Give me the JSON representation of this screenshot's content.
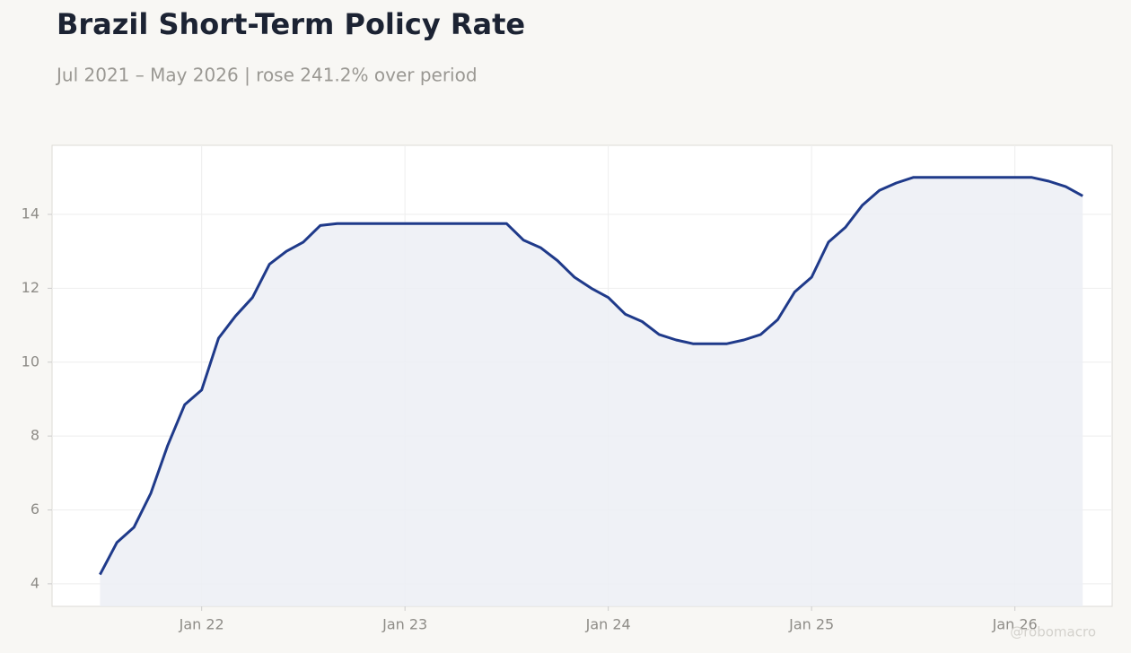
{
  "chart_data": {
    "type": "area-line",
    "title": "Brazil Short-Term Policy Rate",
    "subtitle": "Jul 2021 – May 2026 | rose 241.2% over period",
    "watermark": "@robomacro",
    "color": "#1f3a8a",
    "fill_color": "#eceef5",
    "grid": true,
    "x": [
      "2021-07",
      "2021-08",
      "2021-09",
      "2021-10",
      "2021-11",
      "2021-12",
      "2022-01",
      "2022-02",
      "2022-03",
      "2022-04",
      "2022-05",
      "2022-06",
      "2022-07",
      "2022-08",
      "2022-09",
      "2022-10",
      "2022-11",
      "2022-12",
      "2023-01",
      "2023-02",
      "2023-03",
      "2023-04",
      "2023-05",
      "2023-06",
      "2023-07",
      "2023-08",
      "2023-09",
      "2023-10",
      "2023-11",
      "2023-12",
      "2024-01",
      "2024-02",
      "2024-03",
      "2024-04",
      "2024-05",
      "2024-06",
      "2024-07",
      "2024-08",
      "2024-09",
      "2024-10",
      "2024-11",
      "2024-12",
      "2025-01",
      "2025-02",
      "2025-03",
      "2025-04",
      "2025-05",
      "2025-06",
      "2025-07",
      "2025-08",
      "2025-09",
      "2025-10",
      "2025-11",
      "2025-12",
      "2026-01",
      "2026-02",
      "2026-03",
      "2026-04",
      "2026-05"
    ],
    "values": [
      4.25,
      5.12,
      5.53,
      6.45,
      7.75,
      8.85,
      9.25,
      10.65,
      11.25,
      11.75,
      12.65,
      13.0,
      13.25,
      13.7,
      13.75,
      13.75,
      13.75,
      13.75,
      13.75,
      13.75,
      13.75,
      13.75,
      13.75,
      13.75,
      13.75,
      13.3,
      13.1,
      12.75,
      12.3,
      12.0,
      11.75,
      11.3,
      11.1,
      10.75,
      10.6,
      10.5,
      10.5,
      10.5,
      10.6,
      10.75,
      11.15,
      11.9,
      12.3,
      13.25,
      13.65,
      14.25,
      14.65,
      14.85,
      15,
      15,
      15,
      15,
      15,
      15,
      15,
      15,
      14.9,
      14.75,
      14.5
    ],
    "ylim": [
      3.39,
      15.87
    ],
    "yticks": [
      4,
      6,
      8,
      10,
      12,
      14
    ],
    "xticks": [
      {
        "value": "2022-01",
        "label": "Jan 22"
      },
      {
        "value": "2023-01",
        "label": "Jan 23"
      },
      {
        "value": "2024-01",
        "label": "Jan 24"
      },
      {
        "value": "2025-01",
        "label": "Jan 25"
      },
      {
        "value": "2026-01",
        "label": "Jan 26"
      }
    ]
  }
}
